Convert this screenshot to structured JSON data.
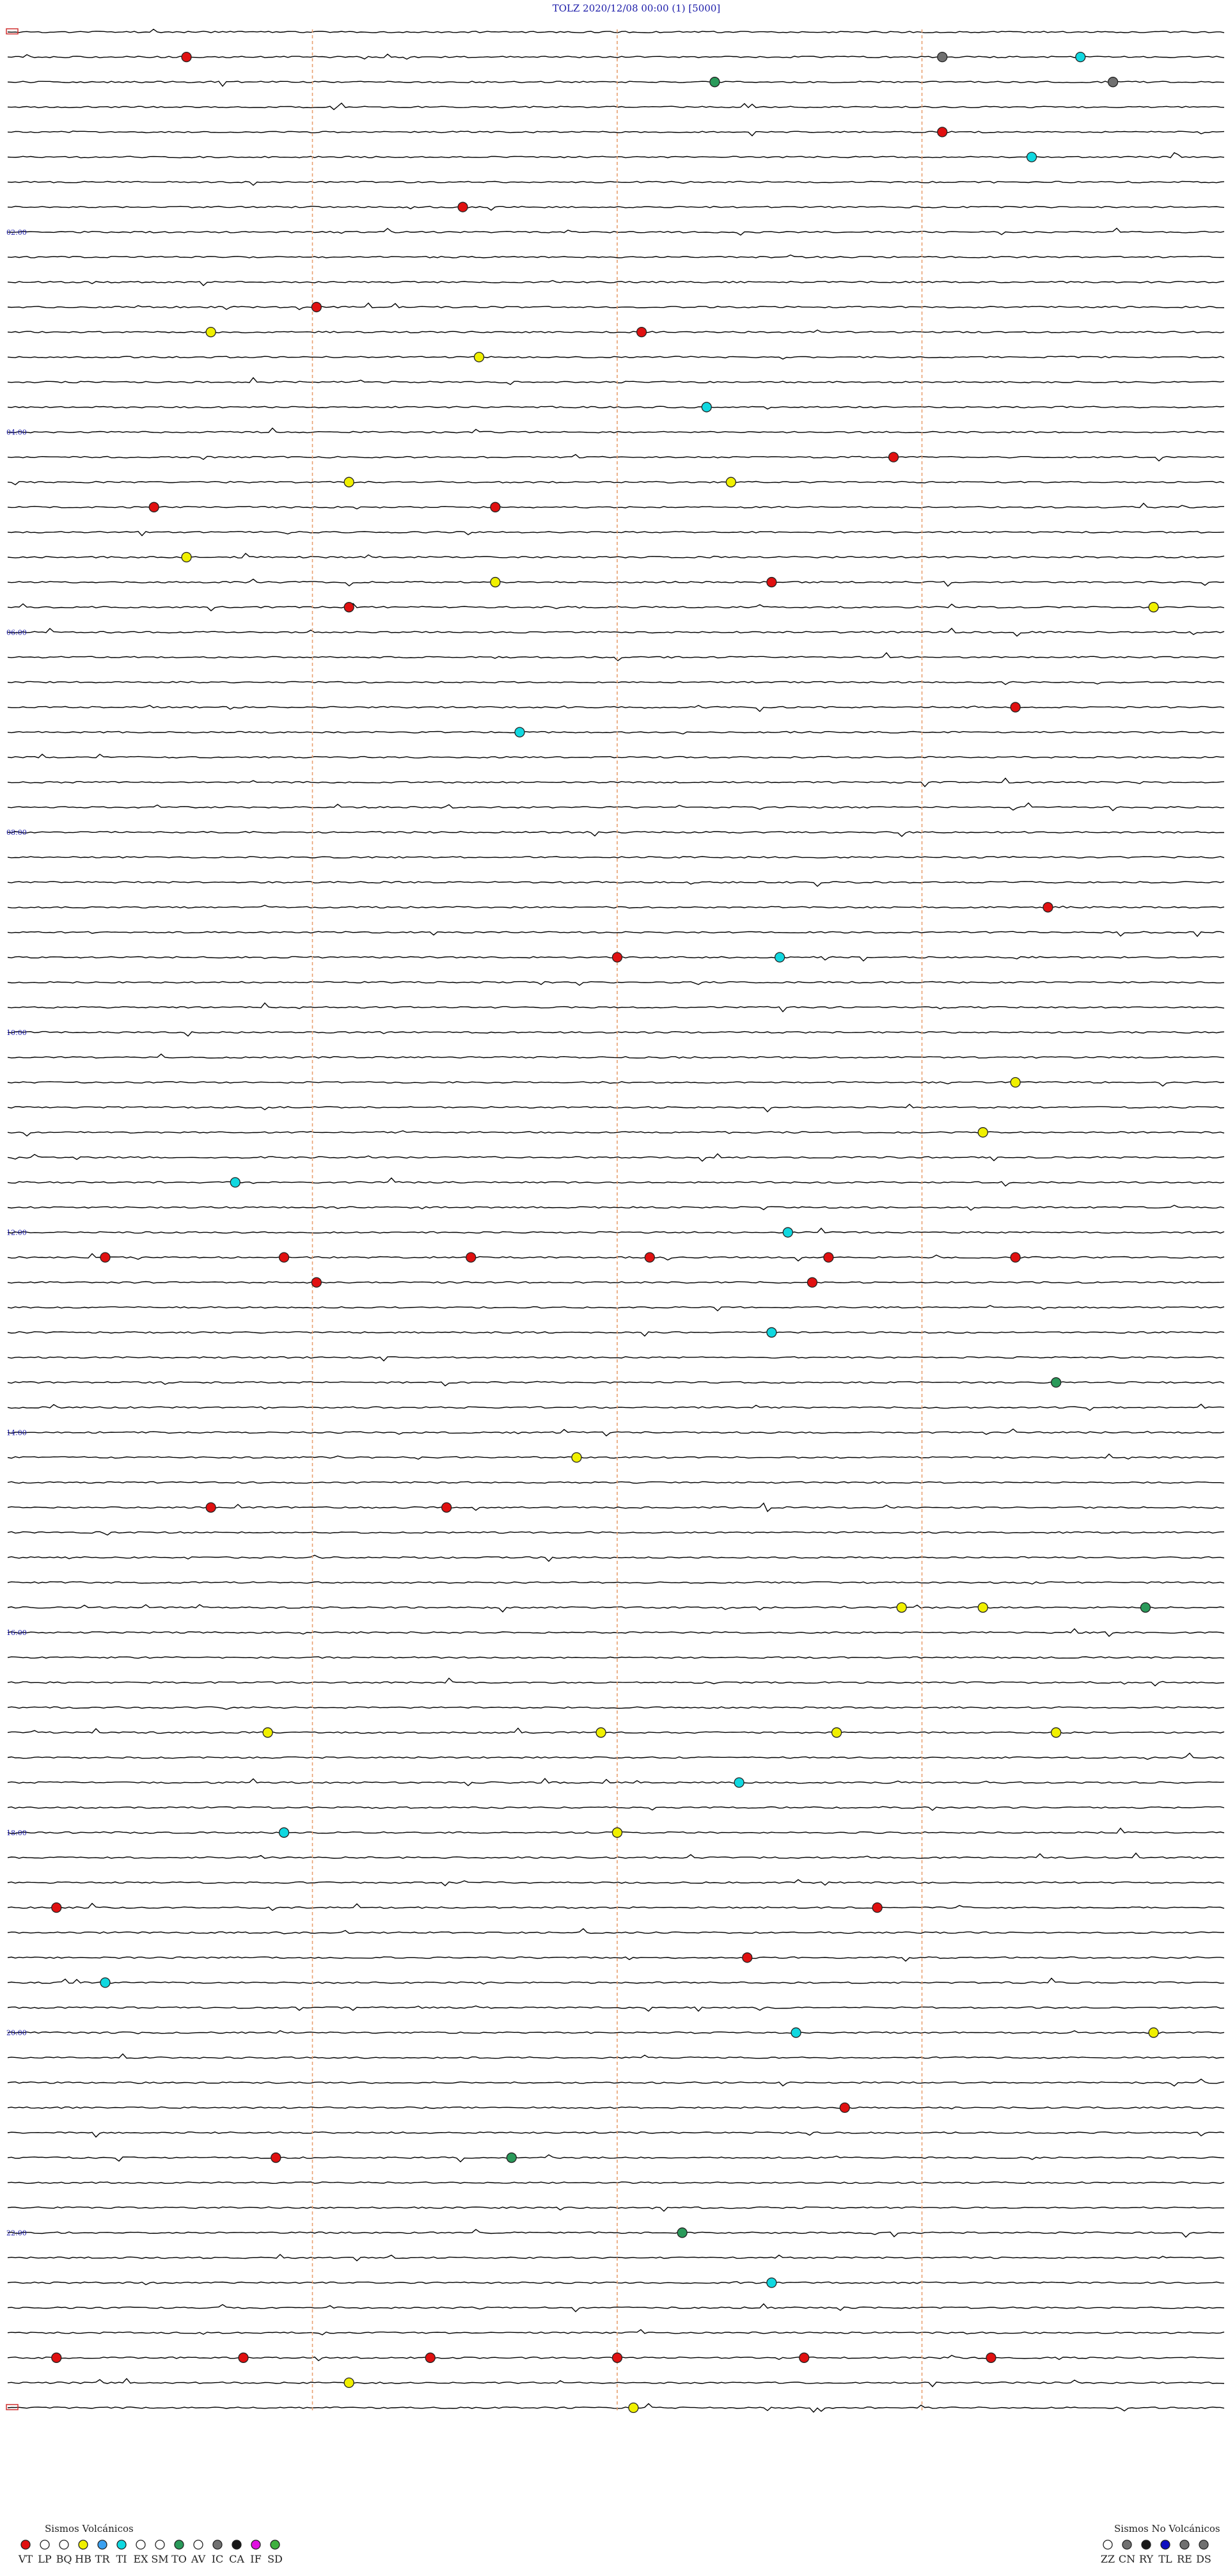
{
  "header": {
    "station": "TOLZ",
    "datetime": "2020/12/08 00:00",
    "component": "(1)",
    "scale": "[5000]"
  },
  "chart_data": {
    "type": "helicorder",
    "title": "TOLZ    2020/12/08 00:00    (1)    [5000]",
    "trace_count": 96,
    "minutes_per_trace": 15,
    "hour_labels": [
      {
        "trace": 8,
        "text": "02:00"
      },
      {
        "trace": 16,
        "text": "04:00"
      },
      {
        "trace": 24,
        "text": "06:00"
      },
      {
        "trace": 32,
        "text": "08:00"
      },
      {
        "trace": 40,
        "text": "10:00"
      },
      {
        "trace": 48,
        "text": "12:00"
      },
      {
        "trace": 56,
        "text": "14:00"
      },
      {
        "trace": 64,
        "text": "16:00"
      },
      {
        "trace": 72,
        "text": "18:00"
      },
      {
        "trace": 80,
        "text": "20:00"
      },
      {
        "trace": 88,
        "text": "22:00"
      }
    ],
    "events": [
      {
        "trace": 1,
        "minute": 2.2,
        "type": "VT"
      },
      {
        "trace": 1,
        "minute": 11.5,
        "type": "IC"
      },
      {
        "trace": 1,
        "minute": 13.2,
        "type": "TI"
      },
      {
        "trace": 2,
        "minute": 8.7,
        "type": "TO"
      },
      {
        "trace": 2,
        "minute": 13.6,
        "type": "IC"
      },
      {
        "trace": 4,
        "minute": 11.5,
        "type": "VT"
      },
      {
        "trace": 5,
        "minute": 12.6,
        "type": "TI"
      },
      {
        "trace": 7,
        "minute": 5.6,
        "type": "VT"
      },
      {
        "trace": 11,
        "minute": 3.8,
        "type": "VT"
      },
      {
        "trace": 12,
        "minute": 2.5,
        "type": "HB"
      },
      {
        "trace": 12,
        "minute": 7.8,
        "type": "VT"
      },
      {
        "trace": 13,
        "minute": 5.8,
        "type": "HB"
      },
      {
        "trace": 15,
        "minute": 8.6,
        "type": "TI"
      },
      {
        "trace": 17,
        "minute": 10.9,
        "type": "VT"
      },
      {
        "trace": 18,
        "minute": 4.2,
        "type": "HB"
      },
      {
        "trace": 18,
        "minute": 8.9,
        "type": "HB"
      },
      {
        "trace": 19,
        "minute": 1.8,
        "type": "VT"
      },
      {
        "trace": 19,
        "minute": 6.0,
        "type": "VT"
      },
      {
        "trace": 21,
        "minute": 2.2,
        "type": "HB"
      },
      {
        "trace": 22,
        "minute": 6.0,
        "type": "HB"
      },
      {
        "trace": 22,
        "minute": 9.4,
        "type": "VT"
      },
      {
        "trace": 23,
        "minute": 4.2,
        "type": "VT"
      },
      {
        "trace": 23,
        "minute": 14.1,
        "type": "HB"
      },
      {
        "trace": 27,
        "minute": 12.4,
        "type": "VT"
      },
      {
        "trace": 28,
        "minute": 6.3,
        "type": "TI"
      },
      {
        "trace": 35,
        "minute": 12.8,
        "type": "VT"
      },
      {
        "trace": 37,
        "minute": 7.5,
        "type": "VT"
      },
      {
        "trace": 37,
        "minute": 9.5,
        "type": "TI"
      },
      {
        "trace": 42,
        "minute": 12.4,
        "type": "HB"
      },
      {
        "trace": 44,
        "minute": 12.0,
        "type": "HB"
      },
      {
        "trace": 46,
        "minute": 2.8,
        "type": "TI"
      },
      {
        "trace": 48,
        "minute": 9.6,
        "type": "TI"
      },
      {
        "trace": 49,
        "minute": 1.2,
        "type": "VT"
      },
      {
        "trace": 49,
        "minute": 3.4,
        "type": "VT"
      },
      {
        "trace": 49,
        "minute": 5.7,
        "type": "VT"
      },
      {
        "trace": 49,
        "minute": 7.9,
        "type": "VT"
      },
      {
        "trace": 49,
        "minute": 10.1,
        "type": "VT"
      },
      {
        "trace": 49,
        "minute": 12.4,
        "type": "VT"
      },
      {
        "trace": 50,
        "minute": 3.8,
        "type": "VT"
      },
      {
        "trace": 50,
        "minute": 9.9,
        "type": "VT"
      },
      {
        "trace": 52,
        "minute": 9.4,
        "type": "TI"
      },
      {
        "trace": 54,
        "minute": 12.9,
        "type": "TO"
      },
      {
        "trace": 57,
        "minute": 7.0,
        "type": "HB"
      },
      {
        "trace": 59,
        "minute": 2.5,
        "type": "VT"
      },
      {
        "trace": 59,
        "minute": 5.4,
        "type": "VT"
      },
      {
        "trace": 63,
        "minute": 11.0,
        "type": "HB"
      },
      {
        "trace": 63,
        "minute": 12.0,
        "type": "HB"
      },
      {
        "trace": 63,
        "minute": 14.0,
        "type": "TO"
      },
      {
        "trace": 68,
        "minute": 3.2,
        "type": "HB"
      },
      {
        "trace": 68,
        "minute": 7.3,
        "type": "HB"
      },
      {
        "trace": 68,
        "minute": 10.2,
        "type": "HB"
      },
      {
        "trace": 68,
        "minute": 12.9,
        "type": "HB"
      },
      {
        "trace": 70,
        "minute": 9.0,
        "type": "TI"
      },
      {
        "trace": 72,
        "minute": 3.4,
        "type": "TI"
      },
      {
        "trace": 72,
        "minute": 7.5,
        "type": "HB"
      },
      {
        "trace": 75,
        "minute": 0.6,
        "type": "VT"
      },
      {
        "trace": 75,
        "minute": 10.7,
        "type": "VT"
      },
      {
        "trace": 77,
        "minute": 9.1,
        "type": "VT"
      },
      {
        "trace": 78,
        "minute": 1.2,
        "type": "TI"
      },
      {
        "trace": 80,
        "minute": 9.7,
        "type": "TI"
      },
      {
        "trace": 80,
        "minute": 14.1,
        "type": "HB"
      },
      {
        "trace": 83,
        "minute": 10.3,
        "type": "VT"
      },
      {
        "trace": 85,
        "minute": 3.3,
        "type": "VT"
      },
      {
        "trace": 85,
        "minute": 6.2,
        "type": "TO"
      },
      {
        "trace": 88,
        "minute": 8.3,
        "type": "TO"
      },
      {
        "trace": 90,
        "minute": 9.4,
        "type": "TI"
      },
      {
        "trace": 93,
        "minute": 0.6,
        "type": "VT"
      },
      {
        "trace": 93,
        "minute": 2.9,
        "type": "VT"
      },
      {
        "trace": 93,
        "minute": 5.2,
        "type": "VT"
      },
      {
        "trace": 93,
        "minute": 7.5,
        "type": "VT"
      },
      {
        "trace": 93,
        "minute": 9.8,
        "type": "VT"
      },
      {
        "trace": 93,
        "minute": 12.1,
        "type": "VT"
      },
      {
        "trace": 94,
        "minute": 4.2,
        "type": "HB"
      },
      {
        "trace": 95,
        "minute": 7.7,
        "type": "HB"
      }
    ]
  },
  "legend": {
    "volcanic_title": "Sismos Volcánicos",
    "non_volcanic_title": "Sismos No Volcánicos",
    "volcanic_types": [
      {
        "code": "VT",
        "color": "#e01010"
      },
      {
        "code": "LP",
        "color": "#ffffff"
      },
      {
        "code": "BQ",
        "color": "#ffffff"
      },
      {
        "code": "HB",
        "color": "#f0f000"
      },
      {
        "code": "TR",
        "color": "#3aa0f0"
      },
      {
        "code": "TI",
        "color": "#10d8e0"
      },
      {
        "code": "EX",
        "color": "#ffffff"
      },
      {
        "code": "SM",
        "color": "#ffffff"
      },
      {
        "code": "TO",
        "color": "#2a9a5a"
      },
      {
        "code": "AV",
        "color": "#ffffff"
      },
      {
        "code": "IC",
        "color": "#707070"
      },
      {
        "code": "CA",
        "color": "#181818"
      },
      {
        "code": "IF",
        "color": "#e010e0"
      },
      {
        "code": "SD",
        "color": "#40b040"
      }
    ],
    "non_volcanic_types": [
      {
        "code": "ZZ",
        "color": "#ffffff"
      },
      {
        "code": "CN",
        "color": "#707070"
      },
      {
        "code": "RY",
        "color": "#181818"
      },
      {
        "code": "TL",
        "color": "#1010c0"
      },
      {
        "code": "RE",
        "color": "#707070"
      },
      {
        "code": "DS",
        "color": "#707070"
      }
    ]
  },
  "colors": {
    "trace": "#000000",
    "hour_label": "#1a1aa8",
    "time_marker": "#e8a070",
    "frame_marker": "#d03030"
  }
}
